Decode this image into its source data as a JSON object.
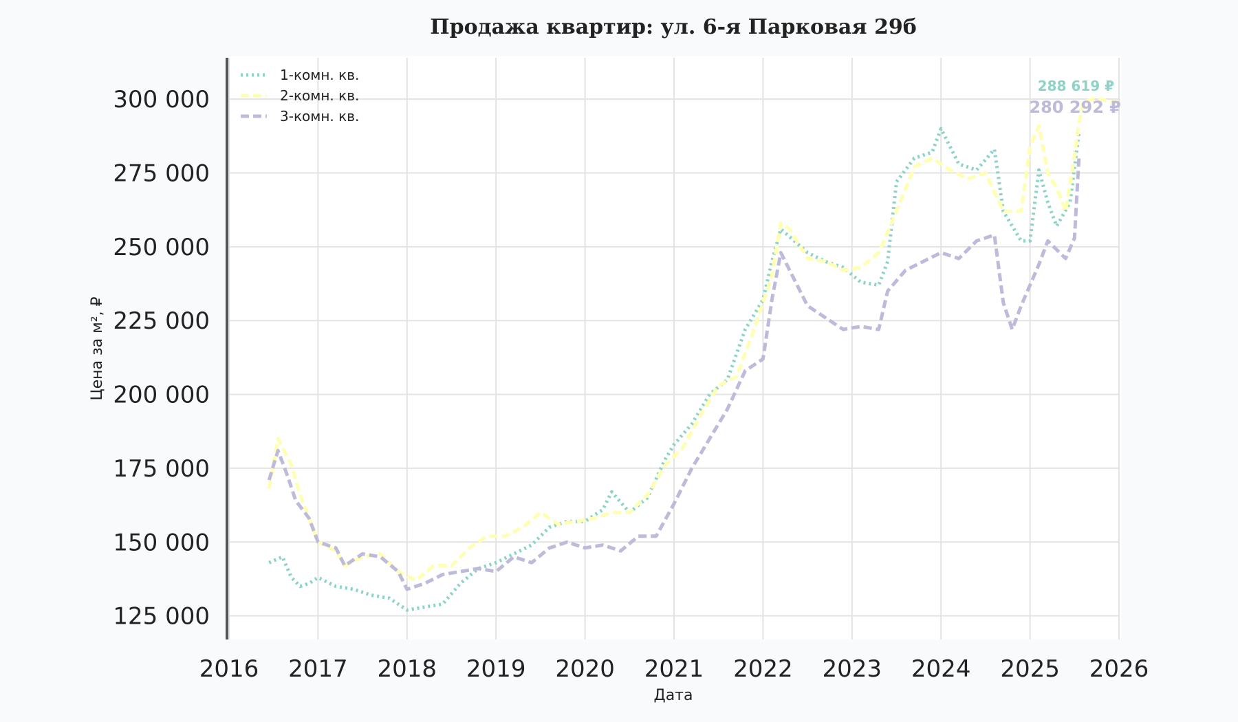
{
  "chart_data": {
    "type": "line",
    "title": "Продажа квартир: ул. 6-я Парковая 29б",
    "xlabel": "Дата",
    "ylabel": "Цена за м², ₽",
    "xlim": [
      2016,
      2026
    ],
    "ylim": [
      117000,
      314000
    ],
    "x_ticks": [
      "2016",
      "2017",
      "2018",
      "2019",
      "2020",
      "2021",
      "2022",
      "2023",
      "2024",
      "2025",
      "2026"
    ],
    "y_ticks": [
      125000,
      150000,
      175000,
      200000,
      225000,
      250000,
      275000,
      300000
    ],
    "y_tick_labels": [
      "125 000",
      "150 000",
      "175 000",
      "200 000",
      "225 000",
      "250 000",
      "275 000",
      "300 000"
    ],
    "grid": true,
    "legend_position": "top-left",
    "series": [
      {
        "name": "1-комн. кв.",
        "color": "#8dd3c7",
        "dash": "dotted",
        "x": [
          2016.45,
          2016.6,
          2016.7,
          2016.8,
          2016.9,
          2017.0,
          2017.2,
          2017.4,
          2017.6,
          2017.8,
          2018.0,
          2018.2,
          2018.4,
          2018.6,
          2018.8,
          2019.0,
          2019.2,
          2019.4,
          2019.6,
          2019.8,
          2020.0,
          2020.2,
          2020.3,
          2020.5,
          2020.7,
          2020.9,
          2021.0,
          2021.2,
          2021.4,
          2021.6,
          2021.8,
          2022.0,
          2022.1,
          2022.2,
          2022.35,
          2022.5,
          2022.7,
          2022.9,
          2023.1,
          2023.3,
          2023.4,
          2023.5,
          2023.7,
          2023.9,
          2024.0,
          2024.2,
          2024.4,
          2024.6,
          2024.7,
          2024.8,
          2024.9,
          2025.0,
          2025.1,
          2025.2,
          2025.3,
          2025.45,
          2025.55
        ],
        "y": [
          143000,
          145000,
          138000,
          135000,
          136000,
          138000,
          135000,
          134000,
          132000,
          131000,
          127000,
          128000,
          129000,
          136000,
          141000,
          143000,
          146000,
          149000,
          155000,
          157000,
          157000,
          161000,
          167000,
          160000,
          165000,
          178000,
          183000,
          190000,
          200000,
          205000,
          222000,
          232000,
          245000,
          256000,
          252000,
          248000,
          245000,
          243000,
          238000,
          237000,
          245000,
          272000,
          280000,
          282000,
          290000,
          278000,
          276000,
          283000,
          262000,
          257000,
          252000,
          252000,
          276000,
          265000,
          257000,
          265000,
          288619
        ]
      },
      {
        "name": "2-комн. кв.",
        "color": "#ffffb3",
        "dash": "dashed",
        "x": [
          2016.45,
          2016.55,
          2016.7,
          2016.8,
          2016.9,
          2017.0,
          2017.2,
          2017.3,
          2017.5,
          2017.7,
          2017.9,
          2018.1,
          2018.3,
          2018.5,
          2018.7,
          2018.9,
          2019.1,
          2019.3,
          2019.5,
          2019.7,
          2019.9,
          2020.1,
          2020.3,
          2020.5,
          2020.7,
          2020.9,
          2021.1,
          2021.3,
          2021.5,
          2021.7,
          2021.9,
          2022.1,
          2022.2,
          2022.3,
          2022.5,
          2022.7,
          2022.9,
          2023.1,
          2023.3,
          2023.5,
          2023.7,
          2023.9,
          2024.1,
          2024.3,
          2024.5,
          2024.7,
          2024.9,
          2025.0,
          2025.1,
          2025.2,
          2025.3,
          2025.4,
          2025.5,
          2025.55,
          2025.6,
          2025.7,
          2025.8,
          2025.9,
          2026.0
        ],
        "y": [
          168000,
          185000,
          176000,
          166000,
          158000,
          150000,
          147000,
          142000,
          145000,
          146000,
          140000,
          137000,
          142000,
          142000,
          148000,
          152000,
          152000,
          155000,
          160000,
          156000,
          157000,
          158000,
          160000,
          160000,
          166000,
          176000,
          182000,
          193000,
          203000,
          206000,
          222000,
          240000,
          258000,
          256000,
          246000,
          245000,
          242000,
          243000,
          248000,
          262000,
          277000,
          280000,
          276000,
          273000,
          275000,
          262000,
          262000,
          284000,
          291000,
          275000,
          270000,
          262000,
          281000,
          292000,
          299000,
          300000,
          300000,
          299000,
          299000
        ]
      },
      {
        "name": "3-комн. кв.",
        "color": "#bebada",
        "dash": "dashed",
        "x": [
          2016.45,
          2016.55,
          2016.65,
          2016.75,
          2016.9,
          2017.0,
          2017.2,
          2017.3,
          2017.5,
          2017.7,
          2017.9,
          2018.0,
          2018.2,
          2018.4,
          2018.6,
          2018.8,
          2019.0,
          2019.2,
          2019.4,
          2019.6,
          2019.8,
          2020.0,
          2020.2,
          2020.4,
          2020.6,
          2020.8,
          2021.0,
          2021.2,
          2021.4,
          2021.6,
          2021.8,
          2022.0,
          2022.1,
          2022.2,
          2022.3,
          2022.5,
          2022.7,
          2022.9,
          2023.1,
          2023.3,
          2023.4,
          2023.6,
          2023.8,
          2024.0,
          2024.2,
          2024.4,
          2024.6,
          2024.7,
          2024.8,
          2024.9,
          2025.0,
          2025.1,
          2025.2,
          2025.3,
          2025.4,
          2025.5,
          2025.55
        ],
        "y": [
          171000,
          181000,
          173000,
          164000,
          158000,
          150000,
          148000,
          142000,
          146000,
          145000,
          140000,
          134000,
          136000,
          139000,
          140000,
          141000,
          140000,
          145000,
          143000,
          148000,
          150000,
          148000,
          149000,
          147000,
          152000,
          152000,
          163000,
          175000,
          185000,
          195000,
          208000,
          212000,
          232000,
          248000,
          242000,
          230000,
          226000,
          222000,
          223000,
          222000,
          235000,
          242000,
          245000,
          248000,
          246000,
          252000,
          254000,
          231000,
          222000,
          230000,
          237000,
          244000,
          252000,
          249000,
          246000,
          253000,
          280292
        ]
      }
    ],
    "annotations": [
      {
        "text": "288 619 ₽",
        "color": "#8dd3c7"
      },
      {
        "text": "280 292 ₽",
        "color": "#bebada"
      }
    ]
  }
}
